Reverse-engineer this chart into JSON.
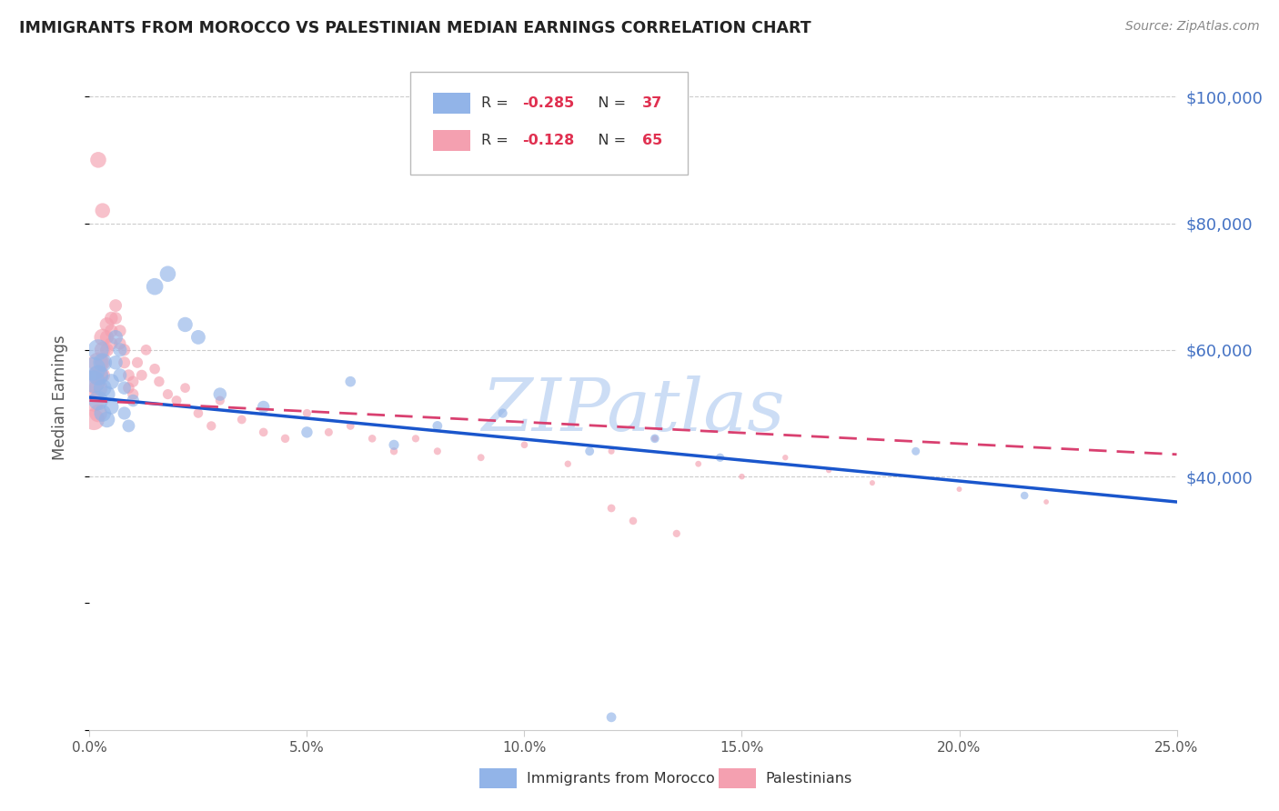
{
  "title": "IMMIGRANTS FROM MOROCCO VS PALESTINIAN MEDIAN EARNINGS CORRELATION CHART",
  "source": "Source: ZipAtlas.com",
  "ylabel": "Median Earnings",
  "xmin": 0.0,
  "xmax": 0.25,
  "ymin": 0,
  "ymax": 105000,
  "yticks": [
    0,
    20000,
    40000,
    60000,
    80000,
    100000
  ],
  "xtick_labels": [
    "0.0%",
    "5.0%",
    "10.0%",
    "15.0%",
    "20.0%",
    "25.0%"
  ],
  "xticks": [
    0.0,
    0.05,
    0.1,
    0.15,
    0.2,
    0.25
  ],
  "right_ytick_color": "#4472c4",
  "blue_color": "#92b4e8",
  "pink_color": "#f4a0b0",
  "trend_blue_color": "#1a56cc",
  "trend_pink_color": "#d94070",
  "watermark": "ZIPatlas",
  "watermark_color": "#ccddf5",
  "morocco_x": [
    0.001,
    0.001,
    0.002,
    0.002,
    0.002,
    0.003,
    0.003,
    0.003,
    0.004,
    0.004,
    0.005,
    0.005,
    0.006,
    0.006,
    0.007,
    0.007,
    0.008,
    0.008,
    0.009,
    0.01,
    0.015,
    0.018,
    0.022,
    0.025,
    0.03,
    0.04,
    0.05,
    0.06,
    0.07,
    0.08,
    0.095,
    0.115,
    0.13,
    0.145,
    0.19,
    0.215,
    0.12
  ],
  "morocco_y": [
    57000,
    55000,
    60000,
    56000,
    52000,
    58000,
    54000,
    50000,
    53000,
    49000,
    55000,
    51000,
    62000,
    58000,
    60000,
    56000,
    54000,
    50000,
    48000,
    52000,
    70000,
    72000,
    64000,
    62000,
    53000,
    51000,
    47000,
    55000,
    45000,
    48000,
    50000,
    44000,
    46000,
    43000,
    44000,
    37000,
    2000
  ],
  "morocco_size": [
    350,
    320,
    280,
    260,
    240,
    220,
    200,
    180,
    170,
    160,
    150,
    140,
    130,
    125,
    120,
    115,
    110,
    105,
    100,
    95,
    180,
    160,
    140,
    130,
    110,
    95,
    80,
    70,
    65,
    60,
    55,
    50,
    48,
    45,
    42,
    38,
    60
  ],
  "palestine_x": [
    0.001,
    0.001,
    0.001,
    0.002,
    0.002,
    0.002,
    0.002,
    0.003,
    0.003,
    0.003,
    0.003,
    0.004,
    0.004,
    0.004,
    0.005,
    0.005,
    0.005,
    0.006,
    0.006,
    0.007,
    0.007,
    0.008,
    0.008,
    0.009,
    0.009,
    0.01,
    0.01,
    0.011,
    0.012,
    0.013,
    0.015,
    0.016,
    0.018,
    0.02,
    0.022,
    0.025,
    0.028,
    0.03,
    0.035,
    0.04,
    0.045,
    0.05,
    0.055,
    0.06,
    0.065,
    0.07,
    0.075,
    0.08,
    0.09,
    0.1,
    0.11,
    0.12,
    0.13,
    0.14,
    0.15,
    0.16,
    0.17,
    0.18,
    0.2,
    0.22,
    0.002,
    0.003,
    0.12,
    0.125,
    0.135
  ],
  "palestine_y": [
    55000,
    52000,
    49000,
    58000,
    56000,
    54000,
    50000,
    62000,
    60000,
    58000,
    56000,
    64000,
    62000,
    60000,
    65000,
    63000,
    61000,
    67000,
    65000,
    63000,
    61000,
    60000,
    58000,
    56000,
    54000,
    55000,
    53000,
    58000,
    56000,
    60000,
    57000,
    55000,
    53000,
    52000,
    54000,
    50000,
    48000,
    52000,
    49000,
    47000,
    46000,
    50000,
    47000,
    48000,
    46000,
    44000,
    46000,
    44000,
    43000,
    45000,
    42000,
    44000,
    46000,
    42000,
    40000,
    43000,
    41000,
    39000,
    38000,
    36000,
    90000,
    82000,
    35000,
    33000,
    31000
  ],
  "palestine_size": [
    320,
    300,
    280,
    260,
    240,
    220,
    200,
    180,
    165,
    150,
    140,
    130,
    120,
    115,
    110,
    108,
    105,
    100,
    98,
    95,
    92,
    90,
    88,
    85,
    82,
    80,
    78,
    76,
    74,
    72,
    70,
    68,
    65,
    62,
    60,
    58,
    55,
    53,
    50,
    48,
    46,
    44,
    42,
    40,
    38,
    36,
    35,
    34,
    32,
    30,
    28,
    26,
    25,
    24,
    22,
    21,
    20,
    19,
    18,
    17,
    160,
    140,
    40,
    38,
    35
  ],
  "trend_blue_x0": 0.0,
  "trend_blue_y0": 52500,
  "trend_blue_x1": 0.25,
  "trend_blue_y1": 36000,
  "trend_pink_x0": 0.0,
  "trend_pink_y0": 52000,
  "trend_pink_x1": 0.25,
  "trend_pink_y1": 43500
}
